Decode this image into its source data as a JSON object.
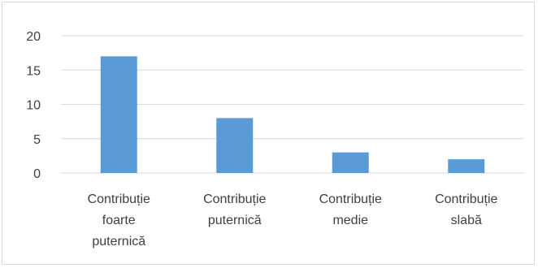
{
  "chart_data": {
    "type": "bar",
    "categories": [
      [
        "Contribuție",
        "foarte",
        "puternică"
      ],
      [
        "Contribuție",
        "puternică"
      ],
      [
        "Contribuție",
        "medie"
      ],
      [
        "Contribuție",
        "slabă"
      ]
    ],
    "values": [
      17,
      8,
      3,
      2
    ],
    "ylim": [
      0,
      20
    ],
    "yticks": [
      0,
      5,
      10,
      15,
      20
    ],
    "grid": true,
    "bar_color": "#5b9bd5",
    "grid_color": "#d9d9d9",
    "axis_color": "#d9d9d9",
    "title": "",
    "xlabel": "",
    "ylabel": ""
  }
}
